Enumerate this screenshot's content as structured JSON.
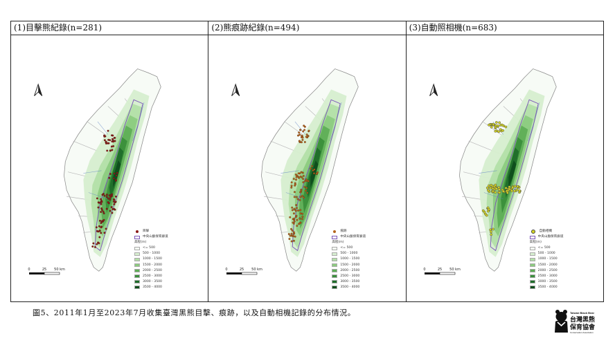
{
  "panels": [
    {
      "title": "(1)目擊熊紀錄(n=281)",
      "point_label": "目擊",
      "point_color": "#8b1a1a",
      "point_style": "dot"
    },
    {
      "title": "(2)熊痕跡紀錄(n=494)",
      "point_label": "痕跡",
      "point_color": "#b5651d",
      "point_style": "dot"
    },
    {
      "title": "(3)自動照相機(n=683)",
      "point_label": "自動相機",
      "point_color": "#d4d423",
      "point_style": "ring"
    }
  ],
  "legend": {
    "area_label": "中央山脈保育廊道",
    "elevation_title": "高程(m)",
    "elevation_classes": [
      "<= 500",
      "500 - 1000",
      "1000 - 1500",
      "1500 - 2000",
      "2000 - 2500",
      "2500 - 3000",
      "3000 - 3500",
      "3500 - 4000"
    ],
    "elevation_colors": [
      "#f4faf2",
      "#d6eecf",
      "#b3dfa8",
      "#8ccb7f",
      "#5fae56",
      "#3a8f3b",
      "#1f6e2a",
      "#0f4d1c"
    ]
  },
  "scale": {
    "ticks": [
      "0",
      "25",
      "50 km"
    ]
  },
  "caption": "圖5、2011年1月至2023年7月收集臺灣黑熊目擊、痕跡，以及自動相機記錄的分布情況。",
  "logo": {
    "name": "台灣黑熊保育協會",
    "name_line1": "台灣黑熊",
    "name_line2": "保育協會",
    "en_top": "Taiwan Black Bear",
    "en_bottom": "Conservation Association"
  },
  "colors": {
    "boundary": "#b8b8b8",
    "corridor": "#7a55b7",
    "river": "#5b7fc4"
  }
}
